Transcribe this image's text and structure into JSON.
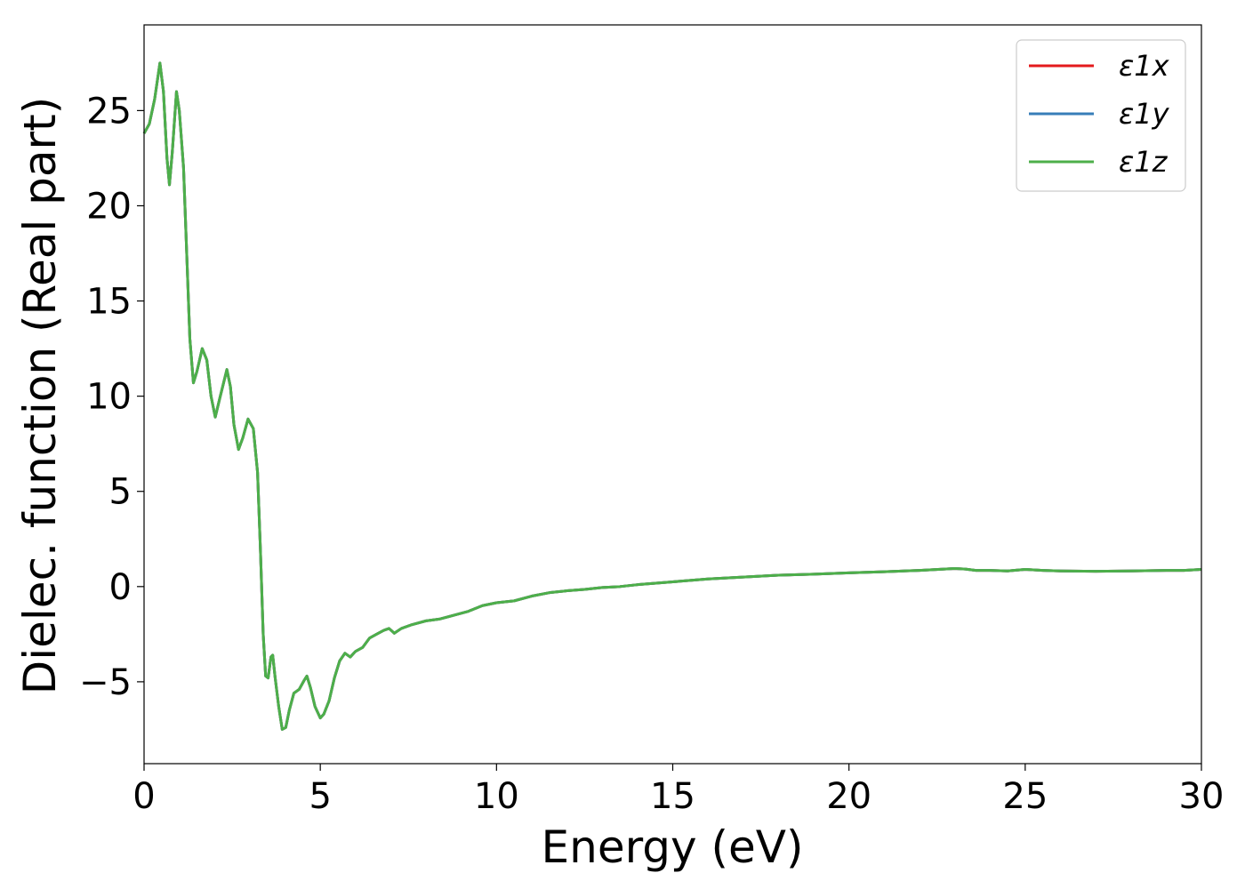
{
  "chart_data": {
    "type": "line",
    "title": "",
    "xlabel": "Energy (eV)",
    "ylabel": "Dielec. function (Real part)",
    "xlim": [
      0,
      30
    ],
    "ylim": [
      -9.3,
      29.5
    ],
    "xticks": [
      {
        "value": 0,
        "label": "0"
      },
      {
        "value": 5,
        "label": "5"
      },
      {
        "value": 10,
        "label": "10"
      },
      {
        "value": 15,
        "label": "15"
      },
      {
        "value": 20,
        "label": "20"
      },
      {
        "value": 25,
        "label": "25"
      },
      {
        "value": 30,
        "label": "30"
      }
    ],
    "yticks": [
      {
        "value": -5,
        "label": "−5"
      },
      {
        "value": 0,
        "label": "0"
      },
      {
        "value": 5,
        "label": "5"
      },
      {
        "value": 10,
        "label": "10"
      },
      {
        "value": 15,
        "label": "15"
      },
      {
        "value": 20,
        "label": "20"
      },
      {
        "value": 25,
        "label": "25"
      }
    ],
    "grid": false,
    "legend_position": "top-right",
    "series": [
      {
        "name": "ε1x",
        "color": "#e41a1c",
        "ref": "shared"
      },
      {
        "name": "ε1y",
        "color": "#377eb8",
        "ref": "shared"
      },
      {
        "name": "ε1z",
        "color": "#4daf4a",
        "ref": "shared"
      }
    ],
    "shared_points": [
      [
        0.0,
        23.8
      ],
      [
        0.15,
        24.3
      ],
      [
        0.3,
        25.6
      ],
      [
        0.45,
        27.5
      ],
      [
        0.55,
        26.0
      ],
      [
        0.65,
        22.5
      ],
      [
        0.72,
        21.1
      ],
      [
        0.8,
        22.8
      ],
      [
        0.92,
        26.0
      ],
      [
        1.0,
        25.0
      ],
      [
        1.12,
        22.0
      ],
      [
        1.22,
        17.0
      ],
      [
        1.3,
        13.0
      ],
      [
        1.4,
        10.7
      ],
      [
        1.5,
        11.3
      ],
      [
        1.65,
        12.5
      ],
      [
        1.78,
        11.9
      ],
      [
        1.9,
        10.0
      ],
      [
        2.02,
        8.9
      ],
      [
        2.15,
        9.9
      ],
      [
        2.35,
        11.4
      ],
      [
        2.45,
        10.5
      ],
      [
        2.55,
        8.5
      ],
      [
        2.68,
        7.2
      ],
      [
        2.8,
        7.8
      ],
      [
        2.95,
        8.8
      ],
      [
        3.1,
        8.3
      ],
      [
        3.22,
        6.0
      ],
      [
        3.3,
        2.0
      ],
      [
        3.38,
        -2.5
      ],
      [
        3.45,
        -4.7
      ],
      [
        3.52,
        -4.8
      ],
      [
        3.6,
        -3.7
      ],
      [
        3.65,
        -3.6
      ],
      [
        3.72,
        -4.8
      ],
      [
        3.82,
        -6.3
      ],
      [
        3.92,
        -7.5
      ],
      [
        4.02,
        -7.4
      ],
      [
        4.12,
        -6.5
      ],
      [
        4.25,
        -5.6
      ],
      [
        4.4,
        -5.4
      ],
      [
        4.55,
        -4.9
      ],
      [
        4.62,
        -4.7
      ],
      [
        4.72,
        -5.3
      ],
      [
        4.85,
        -6.3
      ],
      [
        5.0,
        -6.9
      ],
      [
        5.1,
        -6.7
      ],
      [
        5.25,
        -6.0
      ],
      [
        5.4,
        -4.8
      ],
      [
        5.55,
        -3.9
      ],
      [
        5.7,
        -3.5
      ],
      [
        5.85,
        -3.7
      ],
      [
        6.0,
        -3.4
      ],
      [
        6.2,
        -3.2
      ],
      [
        6.4,
        -2.7
      ],
      [
        6.6,
        -2.5
      ],
      [
        6.8,
        -2.3
      ],
      [
        6.95,
        -2.2
      ],
      [
        7.1,
        -2.45
      ],
      [
        7.3,
        -2.2
      ],
      [
        7.6,
        -2.0
      ],
      [
        8.0,
        -1.8
      ],
      [
        8.4,
        -1.7
      ],
      [
        8.8,
        -1.5
      ],
      [
        9.2,
        -1.3
      ],
      [
        9.6,
        -1.0
      ],
      [
        10.0,
        -0.85
      ],
      [
        10.5,
        -0.75
      ],
      [
        11.0,
        -0.5
      ],
      [
        11.5,
        -0.32
      ],
      [
        12.0,
        -0.22
      ],
      [
        12.5,
        -0.15
      ],
      [
        13.0,
        -0.05
      ],
      [
        13.5,
        0.0
      ],
      [
        14.0,
        0.1
      ],
      [
        15.0,
        0.25
      ],
      [
        16.0,
        0.4
      ],
      [
        17.0,
        0.5
      ],
      [
        18.0,
        0.6
      ],
      [
        19.0,
        0.65
      ],
      [
        20.0,
        0.72
      ],
      [
        21.0,
        0.78
      ],
      [
        22.0,
        0.85
      ],
      [
        23.0,
        0.95
      ],
      [
        23.3,
        0.92
      ],
      [
        23.6,
        0.85
      ],
      [
        24.0,
        0.85
      ],
      [
        24.5,
        0.82
      ],
      [
        25.0,
        0.9
      ],
      [
        25.5,
        0.85
      ],
      [
        26.0,
        0.82
      ],
      [
        27.0,
        0.8
      ],
      [
        28.0,
        0.82
      ],
      [
        29.0,
        0.85
      ],
      [
        29.5,
        0.85
      ],
      [
        30.0,
        0.9
      ]
    ]
  }
}
